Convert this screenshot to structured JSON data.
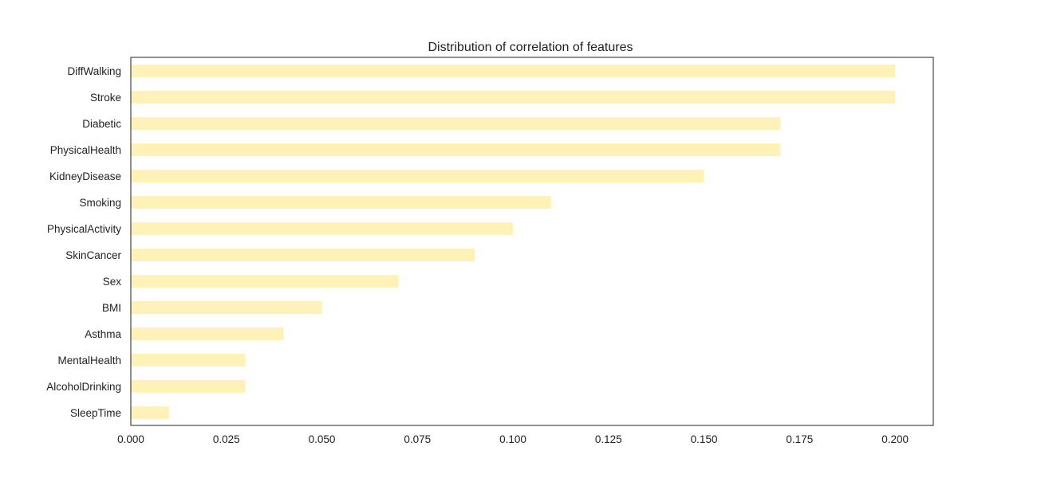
{
  "chart_data": {
    "type": "bar",
    "orientation": "horizontal",
    "title": "Distribution of correlation of features",
    "xlabel": "",
    "ylabel": "",
    "categories": [
      "DiffWalking",
      "Stroke",
      "Diabetic",
      "PhysicalHealth",
      "KidneyDisease",
      "Smoking",
      "PhysicalActivity",
      "SkinCancer",
      "Sex",
      "BMI",
      "Asthma",
      "MentalHealth",
      "AlcoholDrinking",
      "SleepTime"
    ],
    "values": [
      0.2,
      0.2,
      0.17,
      0.17,
      0.15,
      0.11,
      0.1,
      0.09,
      0.07,
      0.05,
      0.04,
      0.03,
      0.03,
      0.01
    ],
    "xlim": [
      0,
      0.21
    ],
    "xticks": [
      "0.000",
      "0.025",
      "0.050",
      "0.075",
      "0.100",
      "0.125",
      "0.150",
      "0.175",
      "0.200"
    ],
    "bar_color": "#fff2b8",
    "grid": false,
    "legend": "none"
  }
}
